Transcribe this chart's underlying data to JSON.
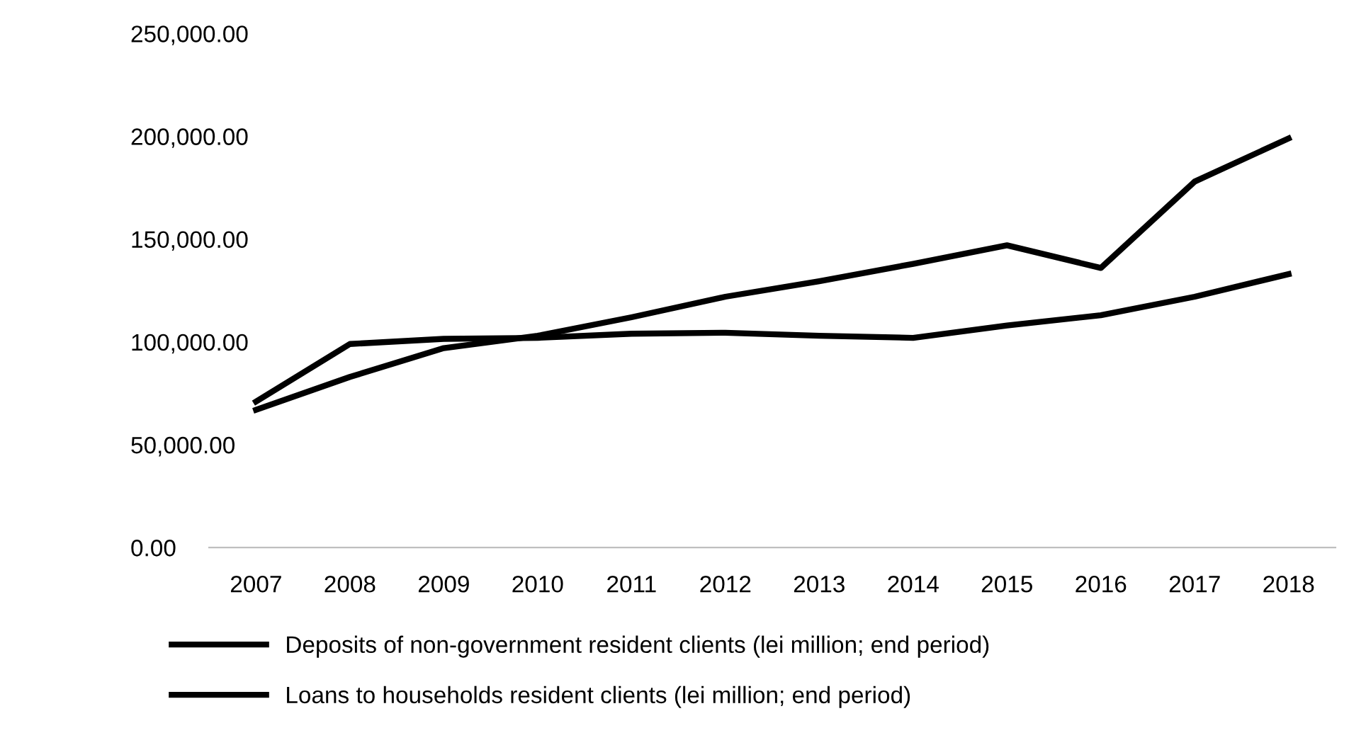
{
  "chart_data": {
    "type": "line",
    "categories": [
      "2007",
      "2008",
      "2009",
      "2010",
      "2011",
      "2012",
      "2013",
      "2014",
      "2015",
      "2016",
      "2017",
      "2018"
    ],
    "series": [
      {
        "name": "Deposits of non-government resident clients (lei million; end period)",
        "color": "#000000",
        "values": [
          67000,
          83000,
          97000,
          103000,
          112000,
          122000,
          129500,
          138000,
          147000,
          136000,
          178000,
          199000
        ]
      },
      {
        "name": "Loans to households resident clients (lei million; end period)",
        "color": "#000000",
        "values": [
          71000,
          99000,
          101500,
          102000,
          104000,
          104500,
          103000,
          102000,
          108000,
          113000,
          122000,
          133000
        ]
      }
    ],
    "ylim": [
      0,
      250000
    ],
    "yticks": [
      {
        "value": 0,
        "label": "0.00"
      },
      {
        "value": 50000,
        "label": "50,000.00"
      },
      {
        "value": 100000,
        "label": "100,000.00"
      },
      {
        "value": 150000,
        "label": "150,000.00"
      },
      {
        "value": 200000,
        "label": "200,000.00"
      },
      {
        "value": 250000,
        "label": "250,000.00"
      }
    ],
    "grid": false,
    "legend": "bottom",
    "marker": "none",
    "line_style": "solid"
  }
}
